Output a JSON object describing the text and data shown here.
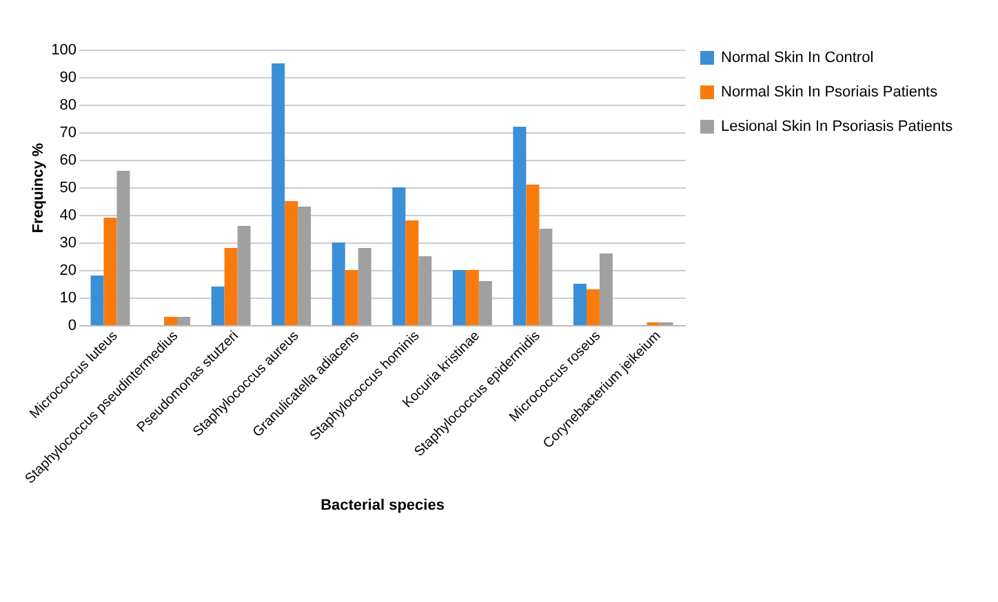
{
  "chart_data": {
    "type": "bar",
    "xlabel": "Bacterial species",
    "ylabel": "Frequincy %",
    "categories": [
      "Micrococcus luteus",
      "Staphylococcus pseudintermedius",
      "Pseudomonas stutzeri",
      "Staphylococcus aureus",
      "Granulicatella adiacens",
      "Staphylococcus hominis",
      "Kocuria kristinae",
      "Staphylococcus epidermidis",
      "Micrococcus roseus",
      "Corynebacterium jeikeium"
    ],
    "series": [
      {
        "name": "Normal Skin In Control",
        "color": "#3a8fd6",
        "values": [
          18,
          0,
          14,
          95,
          30,
          50,
          20,
          72,
          15,
          0
        ]
      },
      {
        "name": "Normal Skin In Psoriais Patients",
        "color": "#f97b0d",
        "values": [
          39,
          3,
          28,
          45,
          20,
          38,
          20,
          51,
          13,
          1
        ]
      },
      {
        "name": "Lesional Skin In Psoriasis Patients",
        "color": "#a0a0a0",
        "values": [
          56,
          3,
          36,
          43,
          28,
          25,
          16,
          35,
          26,
          1
        ]
      }
    ],
    "ylim": [
      0,
      100
    ],
    "yticks": [
      0,
      10,
      20,
      30,
      40,
      50,
      60,
      70,
      80,
      90,
      100
    ],
    "grid": true,
    "legend": "right"
  }
}
